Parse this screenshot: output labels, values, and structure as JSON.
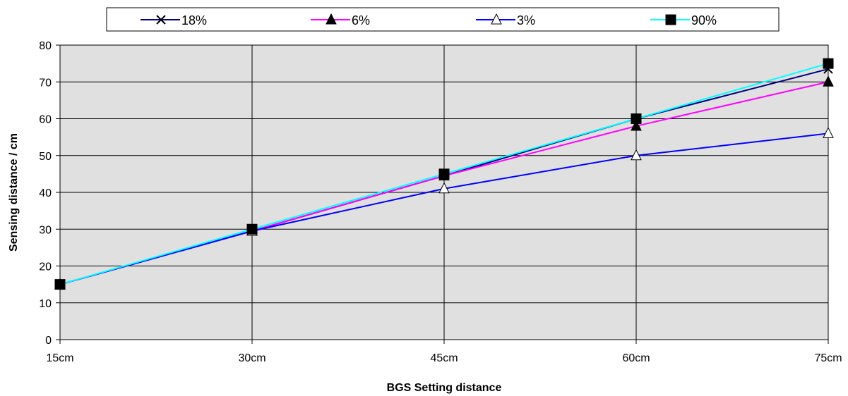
{
  "chart_data": {
    "type": "line",
    "title": "",
    "xlabel": "BGS Setting distance",
    "ylabel": "Sensing distance / cm",
    "categories": [
      "15cm",
      "30cm",
      "45cm",
      "60cm",
      "75cm"
    ],
    "ylim": [
      0,
      80
    ],
    "yticks": [
      0,
      10,
      20,
      30,
      40,
      50,
      60,
      70,
      80
    ],
    "grid": true,
    "legend_position": "top",
    "plot_background": "#e0e0e0",
    "series": [
      {
        "name": "18%",
        "values": [
          15,
          29.5,
          44.5,
          60,
          73.5
        ],
        "color": "#000080",
        "marker": "x"
      },
      {
        "name": "6%",
        "values": [
          15,
          29.5,
          44.5,
          58,
          70
        ],
        "color": "#ff00ff",
        "marker": "triangle-filled"
      },
      {
        "name": "3%",
        "values": [
          15,
          29.5,
          41,
          50,
          56
        ],
        "color": "#0000ff",
        "marker": "triangle-open"
      },
      {
        "name": "90%",
        "values": [
          15,
          30,
          45,
          60,
          75
        ],
        "color": "#00ffff",
        "marker": "square-filled"
      }
    ]
  }
}
